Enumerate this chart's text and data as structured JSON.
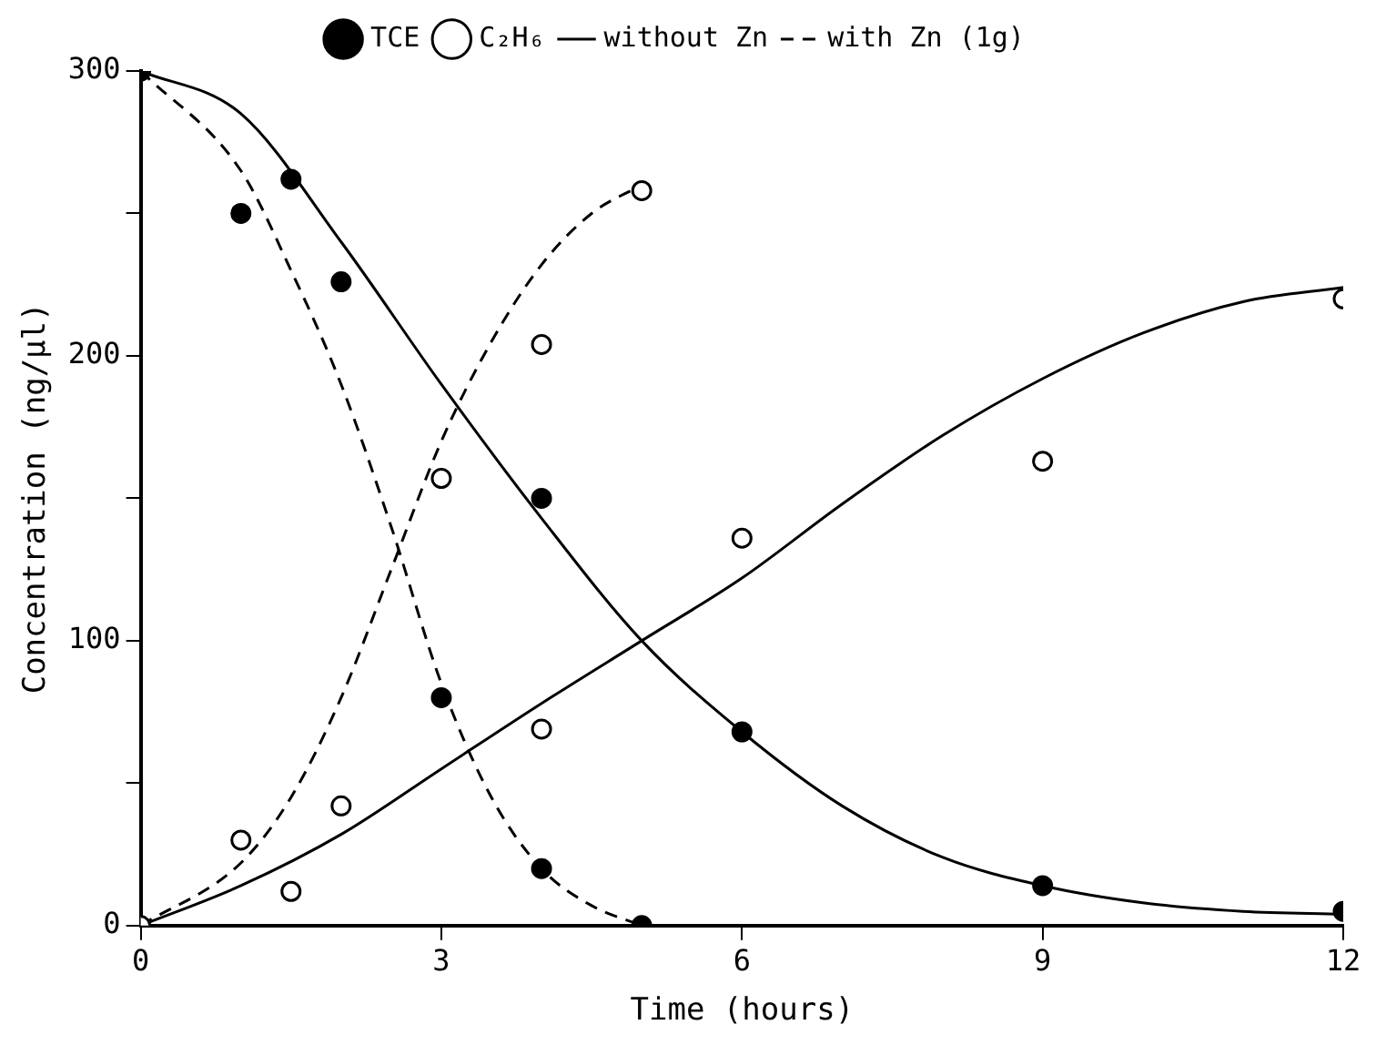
{
  "chart_data": {
    "type": "scatter",
    "xlabel": "Time (hours)",
    "ylabel": "Concentration (ng/µl)",
    "xlim": [
      0,
      12
    ],
    "ylim": [
      0,
      300
    ],
    "xticks": [
      0,
      3,
      6,
      9,
      12
    ],
    "yticks": [
      0,
      {
        "value": 50,
        "label": null
      },
      100,
      {
        "value": 150,
        "label": null
      },
      200,
      {
        "value": 250,
        "label": null
      },
      300
    ],
    "grid": false,
    "legend": "top",
    "series": [
      {
        "name": "TCE",
        "marker": "circle",
        "color": "#000000",
        "x": [
          0,
          1,
          1.5,
          2,
          3,
          4,
          4,
          5,
          6,
          9,
          12
        ],
        "values": [
          300,
          250,
          262,
          226,
          80,
          150,
          20,
          0,
          68,
          14,
          5
        ]
      },
      {
        "name": "C₂H₆",
        "marker": "circle",
        "color": "#000000",
        "x": [
          0,
          1,
          1.5,
          2,
          3,
          4,
          4,
          5,
          6,
          9,
          12
        ],
        "values": [
          0,
          30,
          12,
          42,
          157,
          204,
          69,
          258,
          136,
          163,
          220
        ]
      },
      {
        "name": "without Zn",
        "type": "line",
        "marker": "none",
        "line_style": "solid",
        "color": "#000000",
        "x": [
          0,
          1,
          2,
          3,
          4,
          5,
          6,
          7,
          8,
          9,
          10,
          11,
          12
        ],
        "values": [
          300,
          285,
          240,
          190,
          143,
          100,
          68,
          42,
          24,
          14,
          8,
          5,
          4
        ]
      },
      {
        "name": "with Zn (1g)",
        "type": "line",
        "marker": "none",
        "line_style": "dashed",
        "color": "#000000",
        "x": [
          0,
          1,
          1.5,
          2,
          2.5,
          3,
          3.5,
          4,
          4.5,
          5
        ],
        "values": [
          300,
          265,
          230,
          190,
          140,
          85,
          45,
          20,
          7,
          0
        ]
      },
      {
        "type": "line",
        "marker": "none",
        "line_style": "solid",
        "color": "#000000",
        "x": [
          0,
          1,
          2,
          3,
          4,
          5,
          6,
          7,
          8,
          9,
          10,
          11,
          12
        ],
        "values": [
          0,
          14,
          32,
          55,
          78,
          100,
          122,
          148,
          172,
          192,
          208,
          219,
          224
        ]
      },
      {
        "type": "line",
        "marker": "none",
        "line_style": "dashed",
        "color": "#000000",
        "x": [
          0,
          1,
          1.5,
          2,
          2.5,
          3,
          3.5,
          4,
          4.5,
          5
        ],
        "values": [
          0,
          22,
          45,
          80,
          125,
          170,
          205,
          232,
          250,
          260
        ]
      }
    ]
  }
}
